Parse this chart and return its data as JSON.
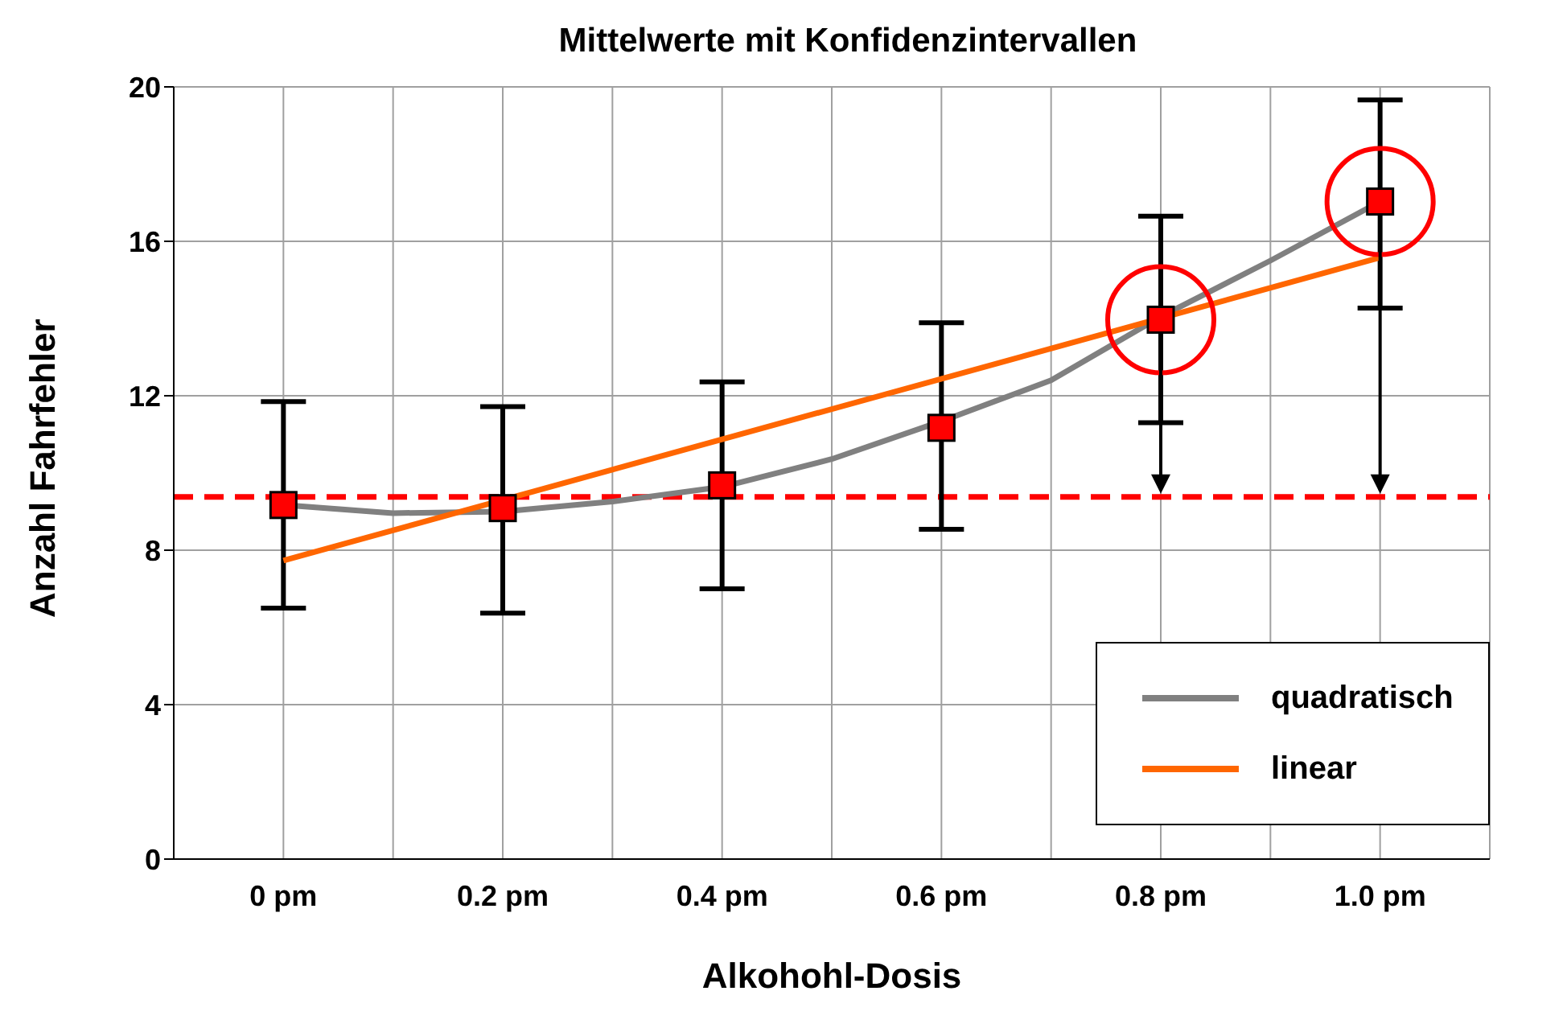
{
  "chart_data": {
    "type": "scatter",
    "title": "Mittelwerte mit Konfidenzintervallen",
    "xlabel": "Alkohohl-Dosis",
    "ylabel": "Anzahl Fahrfehler",
    "x": [
      0,
      0.2,
      0.4,
      0.6,
      0.8,
      1.0
    ],
    "xlim": [
      -0.1,
      1.1
    ],
    "xticks": [
      {
        "value": 0,
        "label": "0 pm"
      },
      {
        "value": 0.1,
        "label": null
      },
      {
        "value": 0.2,
        "label": "0.2 pm"
      },
      {
        "value": 0.3,
        "label": null
      },
      {
        "value": 0.4,
        "label": "0.4 pm"
      },
      {
        "value": 0.5,
        "label": null
      },
      {
        "value": 0.6,
        "label": "0.6 pm"
      },
      {
        "value": 0.7,
        "label": null
      },
      {
        "value": 0.8,
        "label": "0.8 pm"
      },
      {
        "value": 0.9,
        "label": null
      },
      {
        "value": 1.0,
        "label": "1.0 pm"
      },
      {
        "value": 1.1,
        "label": null
      }
    ],
    "ylim": [
      0,
      20
    ],
    "yticks": [
      0,
      4,
      8,
      12,
      16,
      20
    ],
    "grid": true,
    "legend": "bottom right",
    "series": [
      {
        "marker": "square",
        "color": "#ff0000",
        "values": [
          9.17,
          9.09,
          9.68,
          11.17,
          13.97,
          17.03
        ],
        "errors": [
          [
            6.5,
            11.85
          ],
          [
            6.37,
            11.72
          ],
          [
            7.0,
            12.36
          ],
          [
            8.54,
            13.89
          ],
          [
            11.3,
            16.65
          ],
          [
            14.27,
            19.66
          ]
        ]
      },
      {
        "type": "line",
        "name": "quadratisch",
        "color": "#808080",
        "x": [
          0,
          0.1,
          0.2,
          0.3,
          0.4,
          0.5,
          0.6,
          0.7,
          0.8,
          0.9,
          1.0
        ],
        "values": [
          9.17,
          8.96,
          9.0,
          9.26,
          9.64,
          10.36,
          11.34,
          12.4,
          14.05,
          15.5,
          17.03
        ]
      },
      {
        "type": "line",
        "name": "linear",
        "color": "#ff6600",
        "x": [
          0,
          1.0
        ],
        "values": [
          7.73,
          15.58
        ]
      }
    ],
    "ref_lines": [
      {
        "axis": "y",
        "value": 9.38,
        "color": "#ff0000",
        "line_style": "dashed"
      }
    ]
  }
}
